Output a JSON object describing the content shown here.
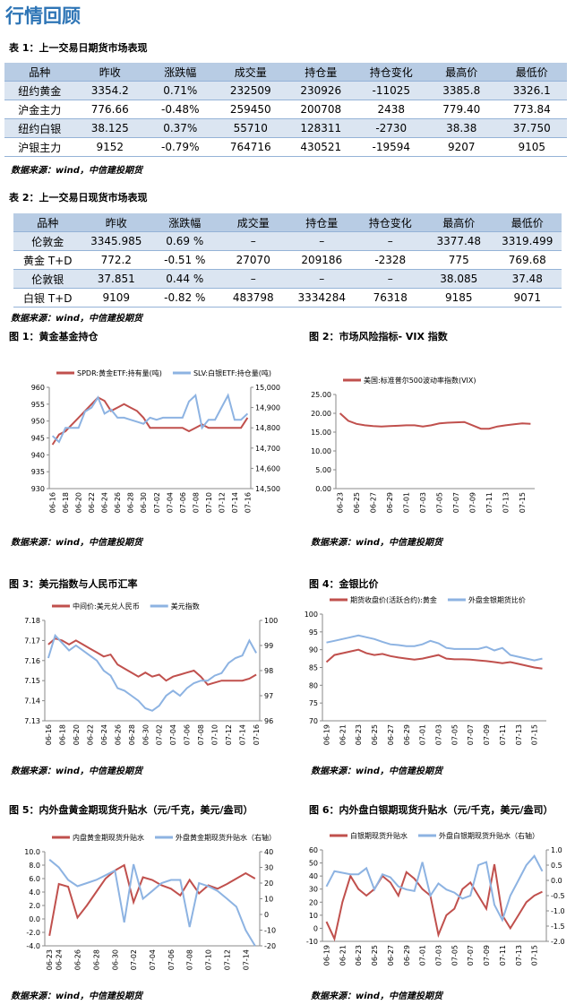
{
  "header": {
    "title": "行情回顾"
  },
  "tables": [
    {
      "title": "表 1：上一交易日期货市场表现",
      "columns": [
        "品种",
        "昨收",
        "涨跌幅",
        "成交量",
        "持仓量",
        "持仓变化",
        "最高价",
        "最低价"
      ],
      "rows": [
        [
          "纽约黄金",
          "3354.2",
          "0.71%",
          "232509",
          "230926",
          "-11025",
          "3385.8",
          "3326.1"
        ],
        [
          "沪金主力",
          "776.66",
          "-0.48%",
          "259450",
          "200708",
          "2438",
          "779.40",
          "773.84"
        ],
        [
          "纽约白银",
          "38.125",
          "0.37%",
          "55710",
          "128311",
          "-2730",
          "38.38",
          "37.750"
        ],
        [
          "沪银主力",
          "9152",
          "-0.79%",
          "764716",
          "430521",
          "-19594",
          "9207",
          "9105"
        ]
      ],
      "source": "数据来源：wind，中信建投期货"
    },
    {
      "title": "表 2：上一交易日现货市场表现",
      "columns": [
        "品种",
        "昨收",
        "涨跌幅",
        "成交量",
        "持仓量",
        "持仓变化",
        "最高价",
        "最低价"
      ],
      "rows": [
        [
          "伦敦金",
          "3345.985",
          "0.69 %",
          "–",
          "–",
          "–",
          "3377.48",
          "3319.499"
        ],
        [
          "黄金 T+D",
          "772.2",
          "-0.51 %",
          "27070",
          "209186",
          "-2328",
          "775",
          "769.68"
        ],
        [
          "伦敦银",
          "37.851",
          "0.44 %",
          "–",
          "–",
          "–",
          "38.085",
          "37.48"
        ],
        [
          "白银 T+D",
          "9109",
          "-0.82 %",
          "483798",
          "3334284",
          "76318",
          "9185",
          "9071"
        ]
      ],
      "source": "数据来源：wind，中信建投期货"
    }
  ],
  "chart_data": [
    {
      "type": "line",
      "title": "图 1：黄金基金持仓",
      "source": "数据来源：wind，中信建投期货",
      "categories": [
        "06-16",
        null,
        "06-18",
        null,
        "06-20",
        null,
        "06-22",
        null,
        "06-24",
        null,
        "06-26",
        null,
        "06-28",
        null,
        "06-30",
        null,
        "07-02",
        null,
        "07-04",
        null,
        "07-06",
        null,
        "07-08",
        null,
        "07-10",
        null,
        "07-12",
        null,
        "07-14",
        null,
        "07-16"
      ],
      "series": [
        {
          "name": "SPDR:黄金ETF:持有量(吨)",
          "color": "#c0504d",
          "values": [
            943,
            946,
            947,
            949,
            951,
            953,
            955,
            957,
            956,
            953,
            954,
            955,
            954,
            953,
            951,
            948,
            948,
            948,
            948,
            948,
            948,
            947,
            948,
            949,
            948,
            948,
            948,
            948,
            948,
            948,
            951
          ]
        },
        {
          "name": "SLV:白银ETF:持仓量(吨)",
          "color": "#8db3e2",
          "axis": "y2",
          "values": [
            14760,
            14730,
            14800,
            14800,
            14800,
            14880,
            14900,
            14950,
            14870,
            14890,
            14850,
            14850,
            14840,
            14830,
            14820,
            14850,
            14840,
            14850,
            14850,
            14850,
            14850,
            14930,
            14960,
            14800,
            14840,
            14840,
            14900,
            14960,
            14840,
            14840,
            14870
          ]
        }
      ],
      "ylim": [
        930,
        960
      ],
      "yticks": [
        930,
        935,
        940,
        945,
        950,
        955,
        960
      ],
      "y2lim": [
        14500,
        15000
      ],
      "y2ticks": [
        {
          "value": 14500,
          "label": "14,500"
        },
        {
          "value": 14600,
          "label": "14,600"
        },
        {
          "value": 14700,
          "label": "14,700"
        },
        {
          "value": 14800,
          "label": "14,800"
        },
        {
          "value": 14900,
          "label": "14,900"
        },
        {
          "value": 15000,
          "label": "15,000"
        }
      ]
    },
    {
      "type": "line",
      "title": "图 2：市场风险指标- VIX 指数",
      "source": "数据来源：wind，中信建投期货",
      "categories": [
        "06-23",
        null,
        "06-25",
        null,
        "06-27",
        null,
        "06-29",
        null,
        "07-01",
        null,
        "07-03",
        null,
        "07-05",
        null,
        "07-07",
        null,
        "07-09",
        null,
        "07-11",
        null,
        "07-13",
        null,
        "07-15",
        null
      ],
      "series": [
        {
          "name": "美国:标准普尔500波动率指数(VIX)",
          "color": "#c0504d",
          "values": [
            20.0,
            18.0,
            17.2,
            16.8,
            16.6,
            16.5,
            16.6,
            16.7,
            16.8,
            16.8,
            16.5,
            16.8,
            17.3,
            17.5,
            17.6,
            17.7,
            16.8,
            15.9,
            15.9,
            16.5,
            16.8,
            17.1,
            17.3,
            17.2
          ]
        }
      ],
      "ylim": [
        0,
        25
      ],
      "yticks": [
        {
          "value": 0,
          "label": "0.00"
        },
        {
          "value": 5,
          "label": "5.00"
        },
        {
          "value": 10,
          "label": "10.00"
        },
        {
          "value": 15,
          "label": "15.00"
        },
        {
          "value": 20,
          "label": "20.00"
        },
        {
          "value": 25,
          "label": "25.00"
        }
      ]
    },
    {
      "type": "line",
      "title": "图 3：美元指数与人民币汇率",
      "source": "数据来源：wind，中信建投期货",
      "categories": [
        "06-16",
        null,
        "06-18",
        null,
        "06-20",
        null,
        "06-22",
        null,
        "06-24",
        null,
        "06-26",
        null,
        "06-28",
        null,
        "06-30",
        null,
        "07-02",
        null,
        "07-04",
        null,
        "07-06",
        null,
        "07-08",
        null,
        "07-10",
        null,
        "07-12",
        null,
        "07-14",
        null,
        "07-16"
      ],
      "series": [
        {
          "name": "中间价:美元兑人民币",
          "color": "#c0504d",
          "values": [
            7.168,
            7.171,
            7.17,
            7.168,
            7.17,
            7.168,
            7.166,
            7.164,
            7.162,
            7.163,
            7.158,
            7.156,
            7.154,
            7.152,
            7.154,
            7.152,
            7.153,
            7.15,
            7.152,
            7.153,
            7.154,
            7.155,
            7.152,
            7.148,
            7.149,
            7.15,
            7.15,
            7.15,
            7.15,
            7.151,
            7.153
          ]
        },
        {
          "name": "美元指数",
          "color": "#8db3e2",
          "axis": "y2",
          "values": [
            98.5,
            99.4,
            99.1,
            98.8,
            99.0,
            98.8,
            98.6,
            98.4,
            98.0,
            97.8,
            97.3,
            97.2,
            97.0,
            96.8,
            96.5,
            96.4,
            96.6,
            97.0,
            97.2,
            97.0,
            97.3,
            97.5,
            97.6,
            97.6,
            97.8,
            97.9,
            98.3,
            98.5,
            98.6,
            99.2,
            98.7
          ]
        }
      ],
      "ylim": [
        7.13,
        7.18
      ],
      "yticks": [
        7.13,
        7.14,
        7.15,
        7.16,
        7.17,
        7.18
      ],
      "y2lim": [
        96,
        100
      ],
      "y2ticks": [
        96,
        97,
        98,
        99,
        100
      ]
    },
    {
      "type": "line",
      "title": "图 4：金银比价",
      "source": "数据来源：wind，中信建投期货",
      "categories": [
        "06-19",
        null,
        "06-21",
        null,
        "06-23",
        null,
        "06-25",
        null,
        "06-27",
        null,
        "06-29",
        null,
        "07-01",
        null,
        "07-03",
        null,
        "07-05",
        null,
        "07-07",
        null,
        "07-09",
        null,
        "07-11",
        null,
        "07-13",
        null,
        "07-15",
        null
      ],
      "series": [
        {
          "name": "期货收盘价(活跃合约):黄金",
          "color": "#c0504d",
          "values": [
            86.5,
            88.5,
            89,
            89.5,
            90,
            89,
            88.5,
            88.8,
            88.2,
            87.8,
            87.5,
            87.2,
            87.5,
            88,
            88.5,
            87.5,
            87.3,
            87.3,
            87.2,
            87,
            86.8,
            86.5,
            86.2,
            86.5,
            86,
            85.5,
            85,
            84.7
          ]
        },
        {
          "name": "外盘金银期货比价",
          "color": "#8db3e2",
          "values": [
            92,
            92.5,
            93,
            93.5,
            94,
            93.5,
            93,
            92.2,
            91.5,
            91.3,
            91,
            91,
            91.5,
            92.5,
            91.8,
            90.5,
            90.2,
            90.2,
            90.2,
            90.2,
            90.8,
            89.8,
            90.5,
            88.5,
            88,
            87.5,
            87,
            87.5
          ]
        }
      ],
      "ylim": [
        70,
        100
      ],
      "yticks": [
        70,
        75,
        80,
        85,
        90,
        95,
        100
      ]
    },
    {
      "type": "line",
      "title": "图 5：内外盘黄金期现货升贴水（元/千克，美元/盎司）",
      "source": "数据来源：wind，中信建投期货",
      "categories": [
        "06-23",
        "06-24",
        null,
        "06-26",
        null,
        "06-28",
        null,
        "06-30",
        null,
        "07-02",
        null,
        "07-04",
        null,
        "07-06",
        null,
        "07-08",
        null,
        "07-10",
        null,
        "07-12",
        null,
        "07-14",
        null
      ],
      "series": [
        {
          "name": "内盘黄金期现货升贴水",
          "color": "#c0504d",
          "values": [
            -2.5,
            5.2,
            4.8,
            0.2,
            2,
            4,
            6,
            7.2,
            8.0,
            2.5,
            6.2,
            5.8,
            5.0,
            4.5,
            3.5,
            5.8,
            3.8,
            5.0,
            4.5,
            5.2,
            6.0,
            6.8,
            6.0
          ]
        },
        {
          "name": "外盘黄金期现货升贴水（右轴）",
          "color": "#8db3e2",
          "axis": "y2",
          "values": [
            35,
            30,
            22,
            18,
            20,
            22,
            25,
            28,
            -5,
            32,
            10,
            15,
            20,
            22,
            22,
            -8,
            20,
            18,
            15,
            10,
            5,
            -10,
            -20
          ]
        }
      ],
      "ylim": [
        -4,
        10
      ],
      "yticks": [
        {
          "value": -4,
          "label": "-4.0"
        },
        {
          "value": -2,
          "label": "-2.0"
        },
        {
          "value": 0,
          "label": "0.0"
        },
        {
          "value": 2,
          "label": "2.0"
        },
        {
          "value": 4,
          "label": "4.0"
        },
        {
          "value": 6,
          "label": "6.0"
        },
        {
          "value": 8,
          "label": "8.0"
        },
        {
          "value": 10,
          "label": "10.0"
        }
      ],
      "y2lim": [
        -20,
        40
      ],
      "y2ticks": [
        -20,
        -10,
        0,
        10,
        20,
        30,
        40
      ]
    },
    {
      "type": "line",
      "title": "图 6：内外盘白银期现货升贴水（元/千克，美元/盎司）",
      "source": "数据来源：wind，中信建投期货",
      "categories": [
        "06-19",
        null,
        "06-21",
        null,
        "06-23",
        null,
        "06-25",
        null,
        "06-27",
        null,
        "06-29",
        null,
        "07-01",
        null,
        "07-03",
        null,
        "07-05",
        null,
        "07-07",
        null,
        "07-09",
        null,
        "07-11",
        null,
        "07-13",
        null,
        "07-15",
        null
      ],
      "series": [
        {
          "name": "白银期现货升贴水",
          "color": "#c0504d",
          "values": [
            5,
            -8,
            20,
            40,
            30,
            25,
            30,
            40,
            35,
            25,
            43,
            38,
            30,
            25,
            -5,
            10,
            15,
            30,
            35,
            25,
            15,
            49,
            10,
            0,
            10,
            20,
            25,
            28
          ]
        },
        {
          "name": "外盘白银期现货升贴水（右轴）",
          "color": "#8db3e2",
          "axis": "y2",
          "values": [
            -0.2,
            0.3,
            0.25,
            0.2,
            0.2,
            0.4,
            -0.3,
            0.2,
            0.1,
            -0.2,
            -0.3,
            -0.35,
            0.6,
            -0.5,
            -0.1,
            -0.3,
            -0.4,
            -0.6,
            -0.5,
            0.5,
            0.6,
            -0.8,
            -1.3,
            -0.5,
            0.0,
            0.5,
            0.8,
            0.3
          ]
        }
      ],
      "ylim": [
        -10,
        60
      ],
      "yticks": [
        -10,
        0,
        10,
        20,
        30,
        40,
        50,
        60
      ],
      "y2lim": [
        -2,
        1
      ],
      "y2ticks": [
        {
          "value": -2,
          "label": "-2.0"
        },
        {
          "value": -1.5,
          "label": "-1.5"
        },
        {
          "value": -1,
          "label": "-1.0"
        },
        {
          "value": -0.5,
          "label": "-0.5"
        },
        {
          "value": 0,
          "label": "0.0"
        },
        {
          "value": 0.5,
          "label": "0.5"
        },
        {
          "value": 1,
          "label": "1.0"
        }
      ]
    }
  ]
}
